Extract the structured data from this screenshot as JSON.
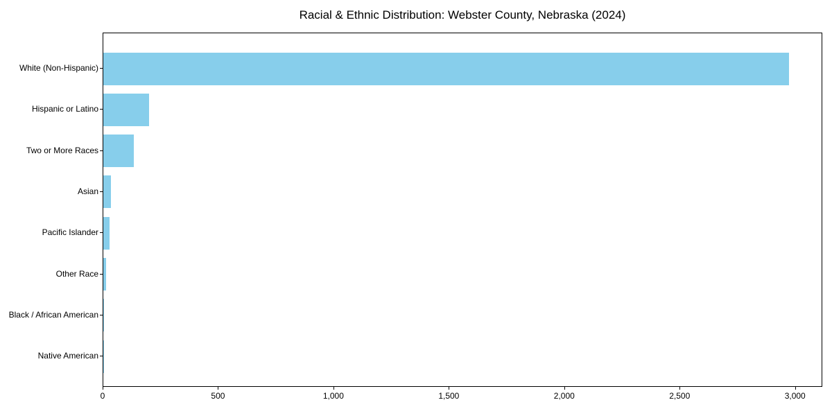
{
  "title": "Racial & Ethnic Distribution: Webster County, Nebraska (2024)",
  "colors": {
    "bar": "#87CEEB",
    "axis": "#000000",
    "text": "#000000",
    "background": "#ffffff"
  },
  "chart_data": {
    "type": "bar",
    "orientation": "horizontal",
    "title": "Racial & Ethnic Distribution: Webster County, Nebraska (2024)",
    "xlabel": "",
    "ylabel": "",
    "categories": [
      "White (Non-Hispanic)",
      "Hispanic or Latino",
      "Two or More Races",
      "Asian",
      "Pacific Islander",
      "Other Race",
      "Black / African American",
      "Native American"
    ],
    "values": [
      2970,
      198,
      132,
      32,
      26,
      11,
      3,
      2
    ],
    "xlim": [
      0,
      3118
    ],
    "x_ticks": [
      0,
      500,
      1000,
      1500,
      2000,
      2500,
      3000
    ],
    "x_tick_labels": [
      "0",
      "500",
      "1,000",
      "1,500",
      "2,000",
      "2,500",
      "3,000"
    ],
    "bar_color": "#87CEEB",
    "grid": false,
    "legend_position": "none"
  }
}
